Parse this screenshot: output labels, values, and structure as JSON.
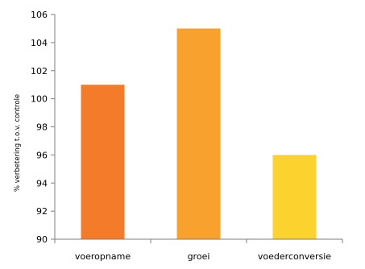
{
  "chart_data": {
    "type": "bar",
    "title": "",
    "xlabel": "",
    "ylabel": "% verbetering t.o.v. controle",
    "categories": [
      "voeropname",
      "groei",
      "voederconversie"
    ],
    "values": [
      101,
      105,
      96
    ],
    "colors": [
      "#f47b2a",
      "#f9a12e",
      "#fcd22f"
    ],
    "ylim": [
      90,
      106
    ],
    "yticks": [
      90,
      92,
      94,
      96,
      98,
      100,
      102,
      104,
      106
    ],
    "grid": false,
    "legend": "none"
  }
}
